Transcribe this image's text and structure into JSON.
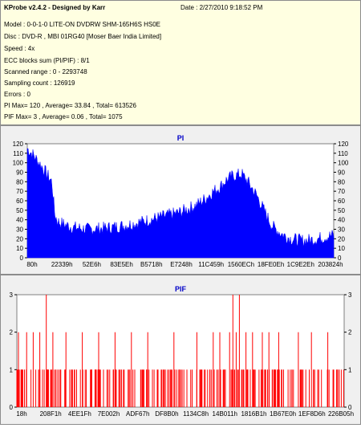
{
  "header": {
    "title": "KProbe v2.4.2 - Designed by Karr",
    "date": "Date : 2/27/2010 9:18:52 PM",
    "lines": [
      "Model : 0-0-1-0 LITE-ON DVDRW SHM-165H6S HS0E",
      "Disc : DVD-R , MBI 01RG40 [Moser Baer India Limited]",
      "Speed : 4x",
      "ECC blocks sum (PI/PIF) : 8/1",
      "Scanned range : 0 - 2293748",
      "Sampling count : 126919",
      "Errors : 0",
      "PI Max= 120 , Average= 33.84 , Total= 613526",
      "PIF Max= 3 , Average= 0.06 , Total= 1075"
    ]
  },
  "colors": {
    "info_bg": "#ffffe1",
    "pi_fill": "#0000ff",
    "pif_bars": "#ff0000",
    "title_color": "#0000c8"
  },
  "chart_data": [
    {
      "type": "area",
      "title": "PI",
      "ylim": [
        0,
        120
      ],
      "yticks": [
        0,
        10,
        20,
        30,
        40,
        50,
        60,
        70,
        80,
        90,
        100,
        110,
        120
      ],
      "xlabels": [
        "80h",
        "22339h",
        "52E6h",
        "83E5Eh",
        "B5718h",
        "E7248h",
        "11C459h",
        "1560ECh",
        "18FE0Eh",
        "1C9E2Eh",
        "203824h"
      ],
      "profile": {
        "x": [
          0,
          0.02,
          0.05,
          0.08,
          0.09,
          0.1,
          0.12,
          0.15,
          0.2,
          0.25,
          0.3,
          0.35,
          0.4,
          0.45,
          0.5,
          0.55,
          0.58,
          0.6,
          0.63,
          0.65,
          0.67,
          0.7,
          0.72,
          0.75,
          0.78,
          0.8,
          0.83,
          0.86,
          0.9,
          0.93,
          0.96,
          1.0
        ],
        "y": [
          115,
          108,
          95,
          80,
          45,
          38,
          35,
          32,
          30,
          31,
          33,
          36,
          40,
          44,
          48,
          55,
          62,
          68,
          75,
          82,
          86,
          88,
          80,
          65,
          45,
          33,
          25,
          20,
          18,
          19,
          21,
          24
        ]
      }
    },
    {
      "type": "bar",
      "title": "PIF",
      "ylim": [
        0,
        3
      ],
      "yticks": [
        0,
        1,
        2,
        3
      ],
      "xlabels": [
        "18h",
        "208F1h",
        "4EE1Fh",
        "7E002h",
        "ADF67h",
        "DF8B0h",
        "1134C8h",
        "14B011h",
        "1816B1h",
        "1B67E0h",
        "1EF8D6h",
        "226B05h"
      ],
      "spikes2": [
        0.005,
        0.03,
        0.05,
        0.07,
        0.11,
        0.15,
        0.2,
        0.25,
        0.3,
        0.35,
        0.4,
        0.48,
        0.55,
        0.6,
        0.62,
        0.65,
        0.67,
        0.7,
        0.72,
        0.75,
        0.77,
        0.8,
        0.86,
        0.9,
        0.95
      ],
      "spikes3": [
        0.09,
        0.66,
        0.68
      ]
    }
  ]
}
